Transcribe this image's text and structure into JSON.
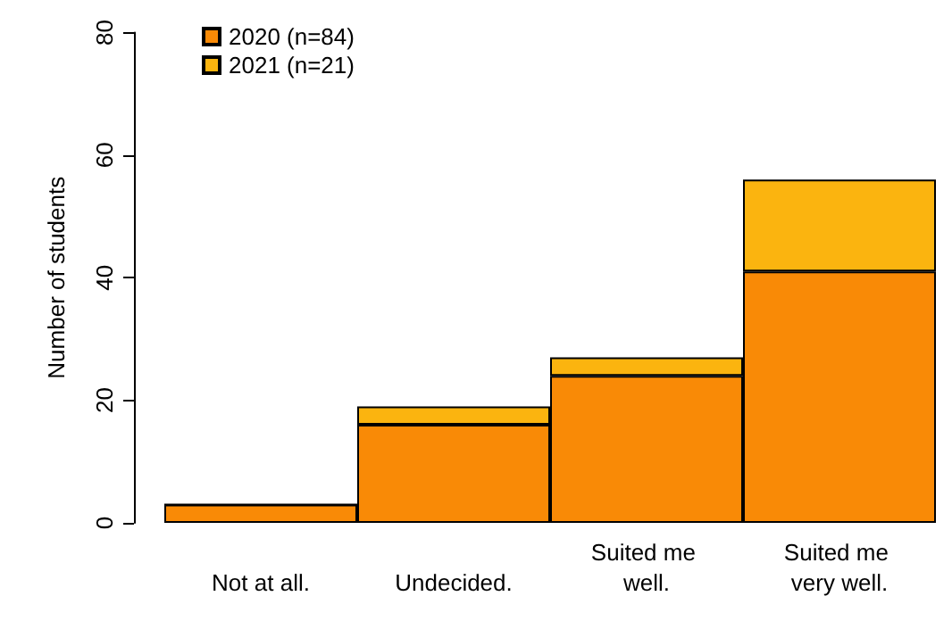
{
  "chart_data": {
    "type": "bar",
    "stacked": true,
    "ylabel": "Number of students",
    "categories": [
      "Not at all.",
      "Undecided.",
      "Suited me well.",
      "Suited me very well."
    ],
    "series": [
      {
        "name": "2020 (n=84)",
        "color": "#f98a06",
        "values": [
          3,
          16,
          24,
          41
        ]
      },
      {
        "name": "2021 (n=21)",
        "color": "#fbb40f",
        "values": [
          0,
          3,
          3,
          15
        ]
      }
    ],
    "ylim": [
      0,
      80
    ],
    "yticks": [
      0,
      20,
      40,
      60,
      80
    ],
    "grid": false,
    "legend": "top left"
  }
}
